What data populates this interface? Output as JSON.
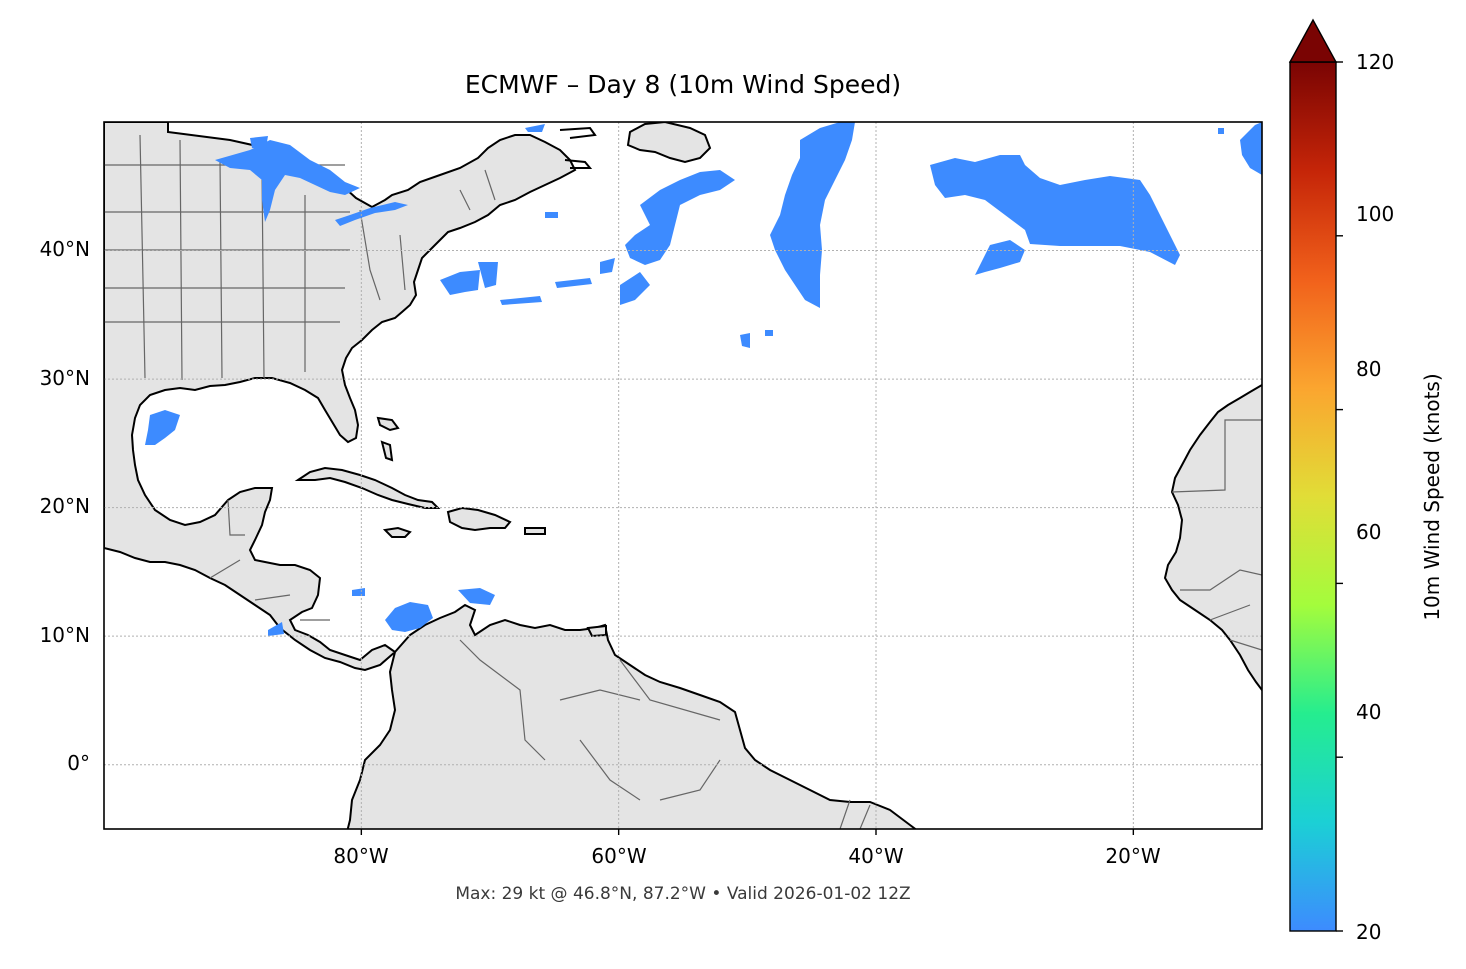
{
  "title": "ECMWF – Day 8 (10m Wind Speed)",
  "footer": "Max: 29 kt @ 46.8°N, 87.2°W • Valid 2026-01-02 12Z",
  "map": {
    "extent": {
      "lon_min": -100,
      "lon_max": -10,
      "lat_min": -5,
      "lat_max": 50
    },
    "lat_ticks": [
      "40°N",
      "30°N",
      "20°N",
      "10°N",
      "0°"
    ],
    "lon_ticks": [
      "80°W",
      "60°W",
      "40°W",
      "20°W"
    ],
    "gridlines": true,
    "land_color": "#e4e4e4",
    "ocean_color": "#ffffff",
    "coast_color": "#000000",
    "border_color": "#666666"
  },
  "colorbar": {
    "label": "10m Wind Speed (knots)",
    "ticks": [
      "20",
      "40",
      "60",
      "80",
      "100",
      "120"
    ],
    "min": 20,
    "max": 120,
    "extend": "max",
    "colormap": [
      "#3d8bff",
      "#1bd0d5",
      "#25ed8f",
      "#a4fc3c",
      "#e1dd37",
      "#fba52f",
      "#f1611b",
      "#c52508",
      "#7a0403"
    ]
  },
  "chart_data": {
    "type": "heatmap",
    "title": "ECMWF – Day 8 (10m Wind Speed)",
    "variable": "10m Wind Speed",
    "units": "knots",
    "value_range": [
      20,
      120
    ],
    "max_value": {
      "value": 29,
      "lat": 46.8,
      "lon": -87.2
    },
    "valid_time": "2026-01-02 12Z"
  }
}
